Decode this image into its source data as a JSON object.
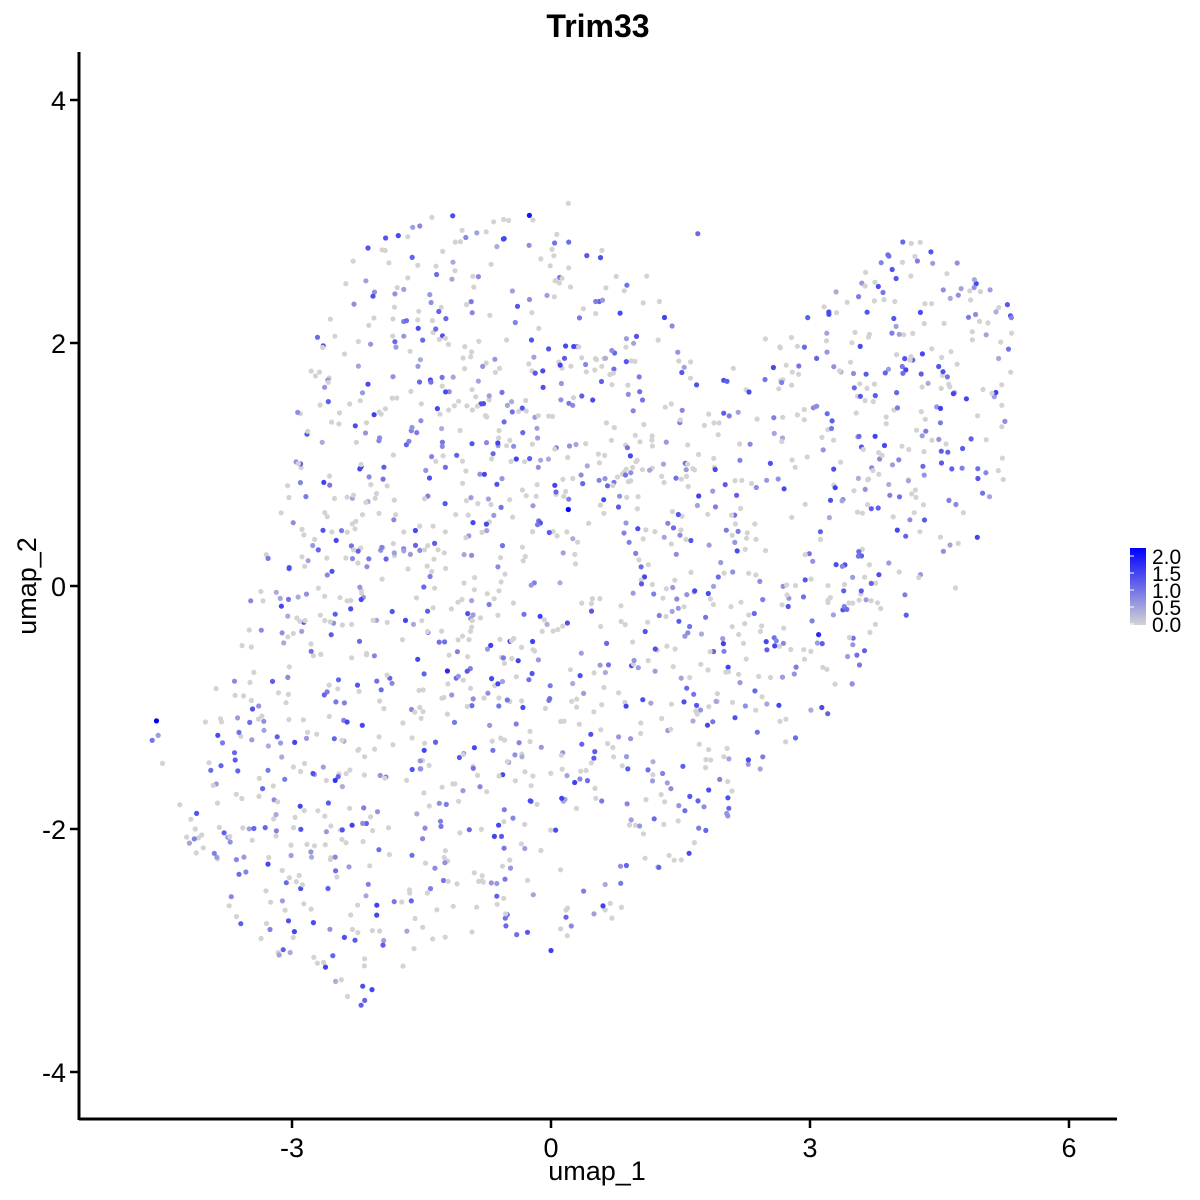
{
  "chart_data": {
    "type": "scatter",
    "title": "Trim33",
    "xlabel": "umap_1",
    "ylabel": "umap_2",
    "xlim": [
      -5.9,
      6.5
    ],
    "ylim": [
      -4.35,
      4.4
    ],
    "x_ticks": [
      {
        "value": -3,
        "label": "-3"
      },
      {
        "value": 0,
        "label": "0"
      },
      {
        "value": 3,
        "label": "3"
      },
      {
        "value": 6,
        "label": "6"
      }
    ],
    "y_ticks": [
      {
        "value": -4,
        "label": "-4"
      },
      {
        "value": -2,
        "label": "-2"
      },
      {
        "value": 0,
        "label": "0"
      },
      {
        "value": 2,
        "label": "2"
      },
      {
        "value": 4,
        "label": "4"
      }
    ],
    "grid": false,
    "legend": {
      "placement": "right",
      "type": "colorbar",
      "min": 0,
      "max": 2.0,
      "labels": [
        "2.0",
        "1.5",
        "1.0",
        "0.5",
        "0.0"
      ]
    },
    "color_low": "#d3d3d3",
    "color_high": "#0000ff",
    "points": [
      {
        "x": -4.57,
        "y": -1.11,
        "v": 2.2
      },
      {
        "x": -4.62,
        "y": -1.27,
        "v": 0.9
      },
      {
        "x": -4.55,
        "y": -1.23,
        "v": 0.5
      },
      {
        "x": -4.5,
        "y": -1.46,
        "v": 0.0
      },
      {
        "x": -4.3,
        "y": -1.8,
        "v": 0.0
      },
      {
        "x": 0.2,
        "y": 0.63,
        "v": 2.0
      },
      {
        "x": -0.25,
        "y": 3.05,
        "v": 1.8
      },
      {
        "x": -1.2,
        "y": -0.7,
        "v": 1.6
      },
      {
        "x": -2.5,
        "y": -1.6,
        "v": 1.5
      },
      {
        "x": 3.1,
        "y": -0.4,
        "v": 1.6
      },
      {
        "x": 4.4,
        "y": 2.75,
        "v": 1.2
      },
      {
        "x": 0.0,
        "y": -3.0,
        "v": 1.4
      },
      {
        "x": -2.2,
        "y": -3.45,
        "v": 1.1
      },
      {
        "x": 5.3,
        "y": 1.95,
        "v": 0.9
      },
      {
        "x": -3.9,
        "y": -2.2,
        "v": 0.8
      },
      {
        "x": 0.2,
        "y": 3.15,
        "v": 0.0
      },
      {
        "x": 1.7,
        "y": 2.9,
        "v": 1.0
      },
      {
        "x": 2.7,
        "y": 0.8,
        "v": 1.3
      },
      {
        "x": -0.9,
        "y": -1.5,
        "v": 0.9
      },
      {
        "x": 1.6,
        "y": -2.2,
        "v": 1.3
      }
    ]
  }
}
